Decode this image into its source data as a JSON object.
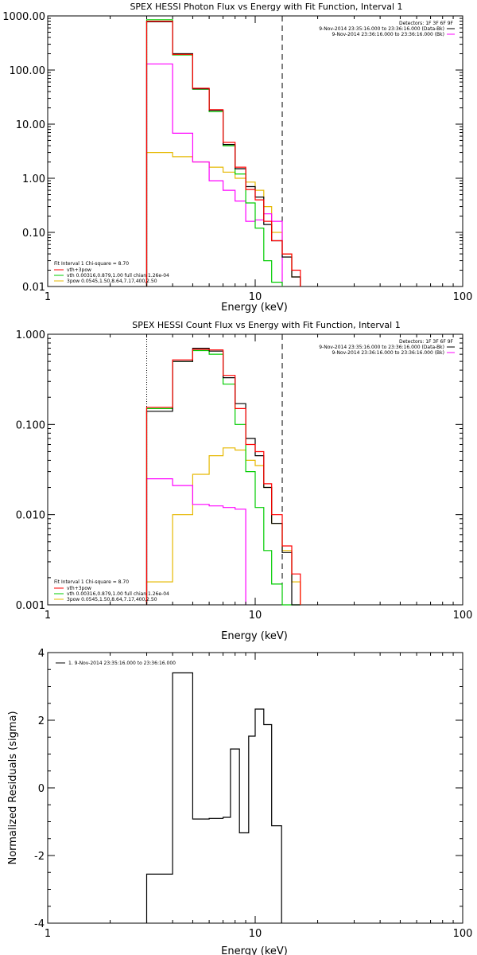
{
  "chart_data": [
    {
      "type": "line",
      "title": "SPEX HESSI Photon Flux vs Energy with Fit Function, Interval 1",
      "xlabel": "Energy (keV)",
      "ylabel": "",
      "x_scale": "log",
      "y_scale": "log",
      "xlim": [
        1,
        100
      ],
      "ylim": [
        0.01,
        1000
      ],
      "xticks": [
        1,
        10,
        100
      ],
      "xtick_labels": [
        "1",
        "10",
        "100"
      ],
      "yticks": [
        0.01,
        0.1,
        1,
        10,
        100,
        1000
      ],
      "ytick_labels": [
        "0.01",
        "0.10",
        "1.00",
        "10.00",
        "100.00",
        "1000.00"
      ],
      "dashed_vline_x": 13.5,
      "dotted_vline_x": 3.0,
      "legend_top_right": [
        "Detectors: 1F 3F 6F 9F",
        "9-Nov-2014 23:35:16.000 to 23:36:16.000 (Data-Bk)",
        "9-Nov-2014 23:36:16.000 to 23:36:16.000 (Bk)"
      ],
      "legend_bottom_left": [
        "Fit Interval 1   Chi-square = 8.70",
        "vth+3pow",
        "vth 0.00316,0.879,1.00  full chian 1.26e-04",
        "3pow 0.0545,1.50,8.64,7.17,400,2.50"
      ],
      "colors": {
        "data": "#000000",
        "total": "#ff0000",
        "bk": "#ff00ff",
        "vth": "#00cc00",
        "pow": "#e6b800"
      },
      "bin_edges": [
        3.0,
        4.0,
        5.0,
        6.0,
        7.0,
        8.0,
        9.0,
        10.0,
        11.0,
        12.0,
        13.5,
        15.0,
        16.5
      ],
      "series": [
        {
          "name": "Data-Bk",
          "values": [
            780,
            200,
            45,
            18,
            4.2,
            1.5,
            0.7,
            0.45,
            0.14,
            0.07,
            0.035,
            0.015
          ]
        },
        {
          "name": "vth+3pow",
          "values": [
            800,
            195,
            46,
            18.5,
            4.6,
            1.6,
            0.62,
            0.4,
            0.16,
            0.07,
            0.04,
            0.02
          ]
        },
        {
          "name": "vth",
          "values": [
            850,
            190,
            44,
            17,
            4.0,
            1.2,
            0.35,
            0.12,
            0.03,
            0.012,
            0,
            0
          ]
        },
        {
          "name": "3pow",
          "values": [
            3.0,
            2.5,
            2.0,
            1.6,
            1.3,
            1.0,
            0.85,
            0.6,
            0.3,
            0.1,
            0.04,
            0.015
          ]
        },
        {
          "name": "Bk",
          "values": [
            130,
            6.8,
            2.0,
            0.9,
            0.6,
            0.38,
            0.16,
            0.17,
            0.22,
            0.16,
            0,
            0
          ]
        }
      ]
    },
    {
      "type": "line",
      "title": "SPEX HESSI Count Flux vs Energy with Fit Function, Interval 1",
      "xlabel": "Energy (keV)",
      "ylabel": "",
      "x_scale": "log",
      "y_scale": "log",
      "xlim": [
        1,
        100
      ],
      "ylim": [
        0.001,
        1
      ],
      "xticks": [
        1,
        10,
        100
      ],
      "xtick_labels": [
        "1",
        "10",
        "100"
      ],
      "yticks": [
        0.001,
        0.01,
        0.1,
        1
      ],
      "ytick_labels": [
        "0.001",
        "0.010",
        "0.100",
        "1.000"
      ],
      "dashed_vline_x": 13.5,
      "dotted_vline_x": 3.0,
      "legend_top_right": [
        "Detectors: 1F 3F 6F 9F",
        "9-Nov-2014 23:35:16.000 to 23:36:16.000 (Data-Bk)",
        "9-Nov-2014 23:36:16.000 to 23:36:16.000 (Bk)"
      ],
      "legend_bottom_left": [
        "Fit Interval 1   Chi-square = 8.70",
        "vth+3pow",
        "vth 0.00316,0.879,1.00  full chian 1.26e-04",
        "3pow 0.0545,1.50,8.64,7.17,400,2.50"
      ],
      "colors": {
        "data": "#000000",
        "total": "#ff0000",
        "bk": "#ff00ff",
        "vth": "#00cc00",
        "pow": "#e6b800"
      },
      "bin_edges": [
        3.0,
        4.0,
        5.0,
        6.0,
        7.0,
        8.0,
        9.0,
        10.0,
        11.0,
        12.0,
        13.5,
        15.0,
        16.5
      ],
      "series": [
        {
          "name": "Data-Bk",
          "values": [
            0.14,
            0.5,
            0.7,
            0.65,
            0.33,
            0.17,
            0.07,
            0.045,
            0.02,
            0.008,
            0.0038,
            0.001
          ]
        },
        {
          "name": "vth+3pow",
          "values": [
            0.155,
            0.52,
            0.68,
            0.67,
            0.35,
            0.15,
            0.06,
            0.05,
            0.022,
            0.01,
            0.0045,
            0.0022
          ]
        },
        {
          "name": "vth",
          "values": [
            0.15,
            0.5,
            0.66,
            0.6,
            0.28,
            0.1,
            0.03,
            0.012,
            0.004,
            0.0017,
            0.001,
            0.001
          ]
        },
        {
          "name": "3pow",
          "values": [
            0.0018,
            0.01,
            0.028,
            0.045,
            0.055,
            0.052,
            0.04,
            0.035,
            0.02,
            0.008,
            0.004,
            0.0018
          ]
        },
        {
          "name": "Bk",
          "values": [
            0.025,
            0.021,
            0.013,
            0.0125,
            0.012,
            0.0115,
            0.0,
            0.0,
            0.0,
            0.0,
            0.0,
            0.0
          ]
        }
      ]
    },
    {
      "type": "line",
      "title": "",
      "xlabel": "Energy (keV)",
      "ylabel": "Normalized Residuals (sigma)",
      "x_scale": "log",
      "y_scale": "linear",
      "xlim": [
        1,
        100
      ],
      "ylim": [
        -4,
        4
      ],
      "xticks": [
        1,
        10,
        100
      ],
      "xtick_labels": [
        "1",
        "10",
        "100"
      ],
      "yticks": [
        -4,
        -2,
        0,
        2,
        4
      ],
      "ytick_labels": [
        "-4",
        "-2",
        "0",
        "2",
        "4"
      ],
      "legend_top_left": [
        "1.  9-Nov-2014 23:35:16.000 to 23:36:16.000"
      ],
      "bin_edges": [
        3.0,
        4.0,
        5.0,
        6.0,
        7.0,
        7.6,
        8.4,
        9.3,
        10.0,
        11.0,
        12.0,
        13.4
      ],
      "series": [
        {
          "name": "residuals",
          "values": [
            -2.55,
            3.4,
            -0.92,
            -0.9,
            -0.87,
            1.15,
            -1.33,
            1.53,
            2.33,
            1.87,
            -1.12
          ]
        }
      ]
    }
  ]
}
